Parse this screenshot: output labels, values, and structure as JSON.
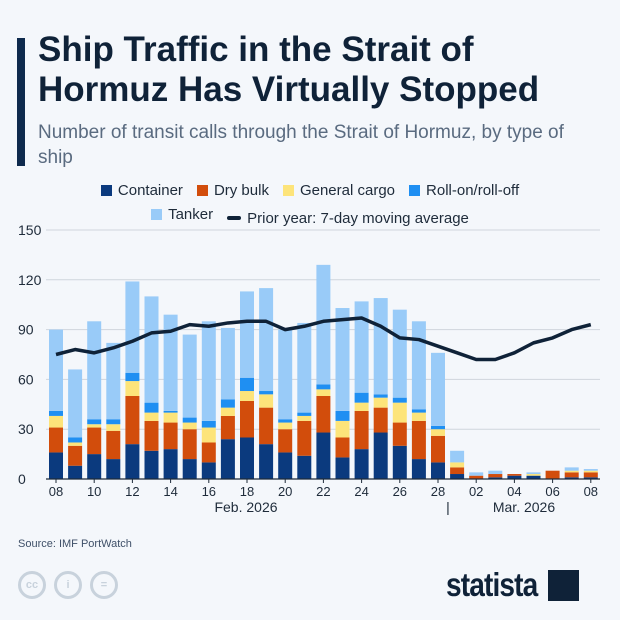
{
  "title": "Ship Traffic in the Strait of Hormuz Has Virtually Stopped",
  "subtitle": "Number of transit calls through the Strait of Hormuz, by type of ship",
  "source": "Source: IMF PortWatch",
  "brand": "statista",
  "chart_data": {
    "type": "bar",
    "stacked": true,
    "categories": [
      "Feb 08",
      "Feb 09",
      "Feb 10",
      "Feb 11",
      "Feb 12",
      "Feb 13",
      "Feb 14",
      "Feb 15",
      "Feb 16",
      "Feb 17",
      "Feb 18",
      "Feb 19",
      "Feb 20",
      "Feb 21",
      "Feb 22",
      "Feb 23",
      "Feb 24",
      "Feb 25",
      "Feb 26",
      "Feb 27",
      "Feb 28",
      "Mar 01",
      "Mar 02",
      "Mar 03",
      "Mar 04",
      "Mar 05",
      "Mar 06",
      "Mar 07",
      "Mar 08"
    ],
    "tick_labels": [
      "08",
      "10",
      "12",
      "14",
      "16",
      "18",
      "20",
      "22",
      "24",
      "26",
      "28",
      "02",
      "04",
      "06",
      "08"
    ],
    "month_labels": [
      "Feb. 2026",
      "Mar. 2026"
    ],
    "month_separator": "|",
    "ylim": [
      0,
      150
    ],
    "yticks": [
      0,
      30,
      60,
      90,
      120,
      150
    ],
    "grid": true,
    "legend": "top",
    "series": [
      {
        "name": "Container",
        "color": "#0b3a7e",
        "values": [
          16,
          8,
          15,
          12,
          21,
          17,
          18,
          12,
          10,
          24,
          25,
          21,
          16,
          14,
          28,
          13,
          18,
          28,
          20,
          12,
          10,
          3,
          0,
          1,
          2,
          2,
          0,
          1,
          1
        ]
      },
      {
        "name": "Dry bulk",
        "color": "#d24d0c",
        "values": [
          15,
          12,
          16,
          17,
          29,
          18,
          16,
          18,
          12,
          14,
          22,
          22,
          14,
          21,
          22,
          12,
          23,
          15,
          14,
          23,
          16,
          4,
          2,
          2,
          1,
          0,
          5,
          3,
          3
        ]
      },
      {
        "name": "General cargo",
        "color": "#fde47a",
        "values": [
          7,
          2,
          2,
          4,
          9,
          5,
          6,
          4,
          9,
          5,
          6,
          8,
          4,
          3,
          4,
          10,
          5,
          6,
          12,
          5,
          4,
          3,
          0,
          0,
          0,
          1,
          0,
          1,
          1
        ]
      },
      {
        "name": "Roll-on/roll-off",
        "color": "#1f8ff2",
        "values": [
          3,
          3,
          3,
          3,
          5,
          6,
          1,
          3,
          4,
          5,
          8,
          2,
          2,
          2,
          3,
          6,
          6,
          2,
          3,
          2,
          2,
          0,
          0,
          0,
          0,
          0,
          0,
          0,
          0
        ]
      },
      {
        "name": "Tanker",
        "color": "#99cbf8",
        "values": [
          49,
          41,
          59,
          46,
          55,
          64,
          58,
          50,
          60,
          43,
          52,
          62,
          54,
          54,
          72,
          62,
          55,
          58,
          53,
          53,
          44,
          7,
          2,
          2,
          0,
          1,
          0,
          2,
          1
        ]
      }
    ],
    "line": {
      "name": "Prior year: 7-day moving average",
      "color": "#0f2238",
      "values": [
        75,
        78,
        76,
        79,
        83,
        88,
        89,
        93,
        92,
        94,
        95,
        95,
        90,
        92,
        95,
        96,
        97,
        92,
        85,
        84,
        80,
        76,
        72,
        72,
        76,
        82,
        85,
        90,
        93
      ]
    }
  }
}
